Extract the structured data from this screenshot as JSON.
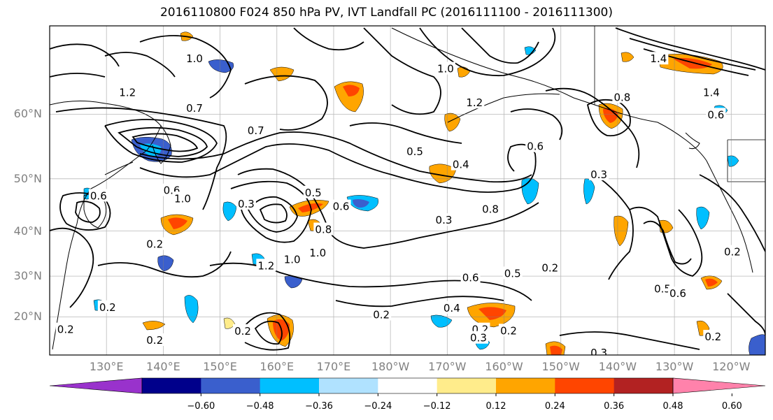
{
  "title": "2016110800 F024 850 hPa PV, IVT Landfall PC (2016111100 - 2016111300)",
  "lat_ticks": [
    {
      "label": "60°N",
      "lat": 60
    },
    {
      "label": "50°N",
      "lat": 50
    },
    {
      "label": "40°N",
      "lat": 40
    },
    {
      "label": "30°N",
      "lat": 30
    },
    {
      "label": "20°N",
      "lat": 20
    }
  ],
  "lon_ticks": [
    {
      "label": "130°E",
      "lon": 130
    },
    {
      "label": "140°E",
      "lon": 140
    },
    {
      "label": "150°E",
      "lon": 150
    },
    {
      "label": "160°E",
      "lon": 160
    },
    {
      "label": "170°E",
      "lon": 170
    },
    {
      "label": "180°W",
      "lon": 180
    },
    {
      "label": "170°W",
      "lon": 190
    },
    {
      "label": "160°W",
      "lon": 200
    },
    {
      "label": "150°W",
      "lon": 210
    },
    {
      "label": "140°W",
      "lon": 220
    },
    {
      "label": "130°W",
      "lon": 230
    },
    {
      "label": "120°W",
      "lon": 240
    }
  ],
  "extent": {
    "lon_min": 120,
    "lon_max": 246,
    "lat_min": 10,
    "lat_max": 70
  },
  "colorbar": {
    "labels": [
      "−0.60",
      "−0.48",
      "−0.36",
      "−0.24",
      "−0.12",
      "0.12",
      "0.24",
      "0.36",
      "0.48",
      "0.60"
    ],
    "colors": [
      "#9932cc",
      "#00008b",
      "#3a5fcd",
      "#00bfff",
      "#b0e2ff",
      "#ffffff",
      "#ffec8b",
      "#ffa500",
      "#ff4500",
      "#b22222",
      "#ff82ab"
    ]
  },
  "contour_labels": [
    {
      "text": "1.0",
      "lon": 145.5,
      "lat": 66.7
    },
    {
      "text": "1.2",
      "lon": 133.7,
      "lat": 62.8
    },
    {
      "text": "0.7",
      "lon": 145.5,
      "lat": 60.8
    },
    {
      "text": "0.7",
      "lon": 156.3,
      "lat": 57.7
    },
    {
      "text": "1.0",
      "lon": 189.7,
      "lat": 65.6
    },
    {
      "text": "1.2",
      "lon": 194.8,
      "lat": 61.5
    },
    {
      "text": "1.4",
      "lon": 227.2,
      "lat": 66.7
    },
    {
      "text": "0.8",
      "lon": 220.8,
      "lat": 62.2
    },
    {
      "text": "1.4",
      "lon": 236.5,
      "lat": 62.8
    },
    {
      "text": "0.6",
      "lon": 237.3,
      "lat": 59.9
    },
    {
      "text": "0.5",
      "lon": 184.3,
      "lat": 54.5
    },
    {
      "text": "0.4",
      "lon": 192.4,
      "lat": 52.4
    },
    {
      "text": "0.6",
      "lon": 205.5,
      "lat": 55.3
    },
    {
      "text": "0.3",
      "lon": 216.7,
      "lat": 50.7
    },
    {
      "text": "0.6",
      "lon": 128.6,
      "lat": 46.9
    },
    {
      "text": "0.6",
      "lon": 141.5,
      "lat": 47.9
    },
    {
      "text": "1.0",
      "lon": 143.4,
      "lat": 46.4
    },
    {
      "text": "0.3",
      "lon": 154.6,
      "lat": 45.4
    },
    {
      "text": "0.5",
      "lon": 166.4,
      "lat": 47.5
    },
    {
      "text": "0.6",
      "lon": 171.3,
      "lat": 44.9
    },
    {
      "text": "0.8",
      "lon": 197.6,
      "lat": 44.4
    },
    {
      "text": "0.3",
      "lon": 189.4,
      "lat": 42.2
    },
    {
      "text": "0.8",
      "lon": 168.2,
      "lat": 40.3
    },
    {
      "text": "0.2",
      "lon": 138.5,
      "lat": 37.2
    },
    {
      "text": "1.2",
      "lon": 158.1,
      "lat": 32.4
    },
    {
      "text": "1.0",
      "lon": 162.7,
      "lat": 33.8
    },
    {
      "text": "1.0",
      "lon": 167.2,
      "lat": 35.3
    },
    {
      "text": "0.2",
      "lon": 208.1,
      "lat": 31.9
    },
    {
      "text": "0.5",
      "lon": 201.5,
      "lat": 30.6
    },
    {
      "text": "0.6",
      "lon": 194.1,
      "lat": 29.6
    },
    {
      "text": "0.2",
      "lon": 240.2,
      "lat": 35.5
    },
    {
      "text": "0.5",
      "lon": 227.9,
      "lat": 26.9
    },
    {
      "text": "0.6",
      "lon": 230.6,
      "lat": 25.8
    },
    {
      "text": "0.2",
      "lon": 130.2,
      "lat": 22.4
    },
    {
      "text": "0.4",
      "lon": 190.8,
      "lat": 22.2
    },
    {
      "text": "0.2",
      "lon": 178.4,
      "lat": 20.5
    },
    {
      "text": "0.2",
      "lon": 154.0,
      "lat": 16.3
    },
    {
      "text": "0.2",
      "lon": 195.8,
      "lat": 16.7
    },
    {
      "text": "0.3",
      "lon": 195.5,
      "lat": 14.5
    },
    {
      "text": "0.2",
      "lon": 200.8,
      "lat": 16.4
    },
    {
      "text": "0.2",
      "lon": 236.8,
      "lat": 14.8
    },
    {
      "text": "0.3",
      "lon": 216.7,
      "lat": 10.6
    },
    {
      "text": "0.2",
      "lon": 122.8,
      "lat": 16.7
    },
    {
      "text": "0.2",
      "lon": 138.5,
      "lat": 13.9
    }
  ]
}
